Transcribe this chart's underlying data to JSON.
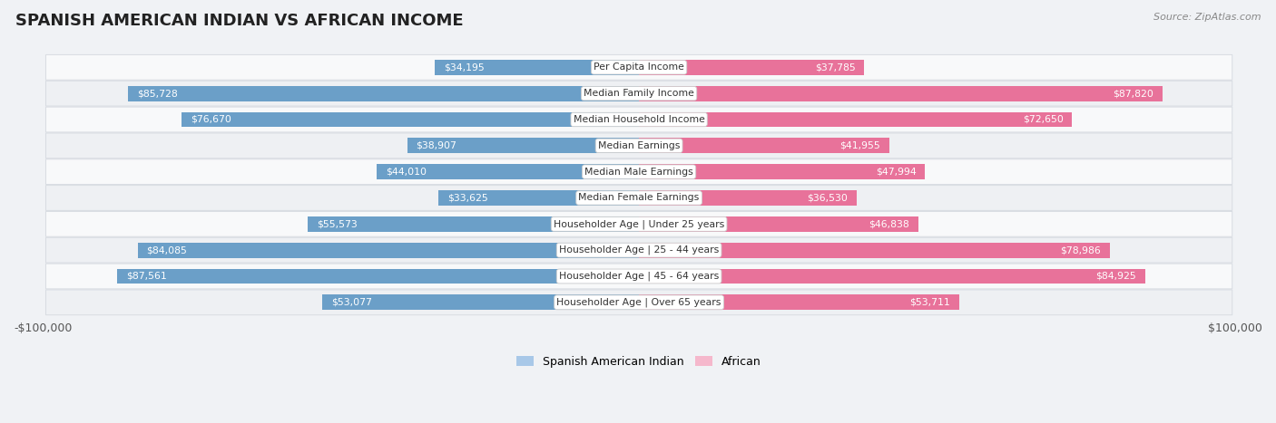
{
  "title": "SPANISH AMERICAN INDIAN VS AFRICAN INCOME",
  "source": "Source: ZipAtlas.com",
  "categories": [
    "Per Capita Income",
    "Median Family Income",
    "Median Household Income",
    "Median Earnings",
    "Median Male Earnings",
    "Median Female Earnings",
    "Householder Age | Under 25 years",
    "Householder Age | 25 - 44 years",
    "Householder Age | 45 - 64 years",
    "Householder Age | Over 65 years"
  ],
  "spanish_values": [
    34195,
    85728,
    76670,
    38907,
    44010,
    33625,
    55573,
    84085,
    87561,
    53077
  ],
  "african_values": [
    37785,
    87820,
    72650,
    41955,
    47994,
    36530,
    46838,
    78986,
    84925,
    53711
  ],
  "spanish_labels": [
    "$34,195",
    "$85,728",
    "$76,670",
    "$38,907",
    "$44,010",
    "$33,625",
    "$55,573",
    "$84,085",
    "$87,561",
    "$53,077"
  ],
  "african_labels": [
    "$37,785",
    "$87,820",
    "$72,650",
    "$41,955",
    "$47,994",
    "$36,530",
    "$46,838",
    "$78,986",
    "$84,925",
    "$53,711"
  ],
  "max_value": 100000,
  "spanish_bar_light": "#a8c8e8",
  "spanish_bar_dark": "#6b9fc8",
  "african_bar_light": "#f5b8cc",
  "african_bar_dark": "#e8729a",
  "row_bg_even": "#f8f9fa",
  "row_bg_odd": "#eef0f3",
  "row_border": "#d8dce2",
  "label_dark": "#555555",
  "label_white": "#ffffff",
  "center_box_bg": "#ffffff",
  "center_box_edge": "#cccccc",
  "center_text": "#333333",
  "fig_bg": "#f0f2f5",
  "legend_spanish": "Spanish American Indian",
  "legend_african": "African",
  "x_label_left": "$100,000",
  "x_label_right": "$100,000",
  "inside_threshold": 25000,
  "title_fontsize": 13,
  "source_fontsize": 8,
  "bar_label_fontsize": 7.8,
  "cat_label_fontsize": 7.8,
  "legend_fontsize": 9
}
